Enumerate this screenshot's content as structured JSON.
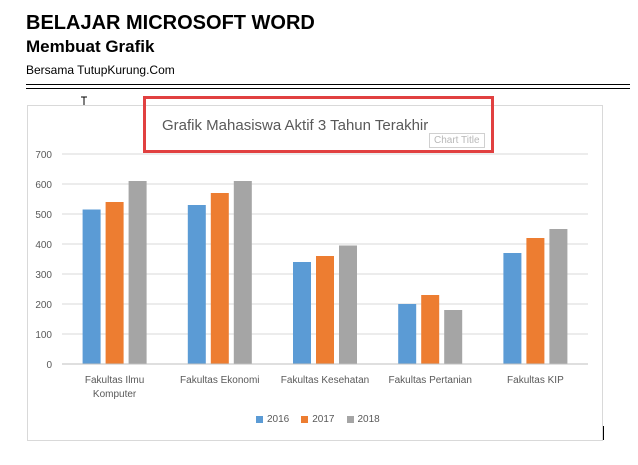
{
  "document": {
    "title": "BELAJAR MICROSOFT WORD",
    "subtitle": "Membuat Grafik",
    "byline": "Bersama TutupKurung.Com"
  },
  "tooltip": {
    "label": "Chart Title"
  },
  "colors": {
    "s2016": "#5b9bd5",
    "s2017": "#ed7d31",
    "s2018": "#a5a5a5",
    "highlight": "#e14040"
  },
  "chart_data": {
    "type": "bar",
    "title": "Grafik Mahasiswa Aktif 3 Tahun Terakhir",
    "xlabel": "",
    "ylabel": "",
    "ylim": [
      0,
      700
    ],
    "yticks": [
      0,
      100,
      200,
      300,
      400,
      500,
      600,
      700
    ],
    "grid": true,
    "legend_position": "bottom",
    "categories": [
      "Fakultas Ilmu Komputer",
      "Fakultas Ekonomi",
      "Fakultas Kesehatan",
      "Fakultas Pertanian",
      "Fakultas KIP"
    ],
    "category_lines": [
      [
        "Fakultas Ilmu",
        "Komputer"
      ],
      [
        "Fakultas Ekonomi"
      ],
      [
        "Fakultas Kesehatan"
      ],
      [
        "Fakultas Pertanian"
      ],
      [
        "Fakultas KIP"
      ]
    ],
    "series": [
      {
        "name": "2016",
        "color": "#5b9bd5",
        "values": [
          515,
          530,
          340,
          200,
          370
        ]
      },
      {
        "name": "2017",
        "color": "#ed7d31",
        "values": [
          540,
          570,
          360,
          230,
          420
        ]
      },
      {
        "name": "2018",
        "color": "#a5a5a5",
        "values": [
          610,
          610,
          395,
          180,
          450
        ]
      }
    ]
  }
}
